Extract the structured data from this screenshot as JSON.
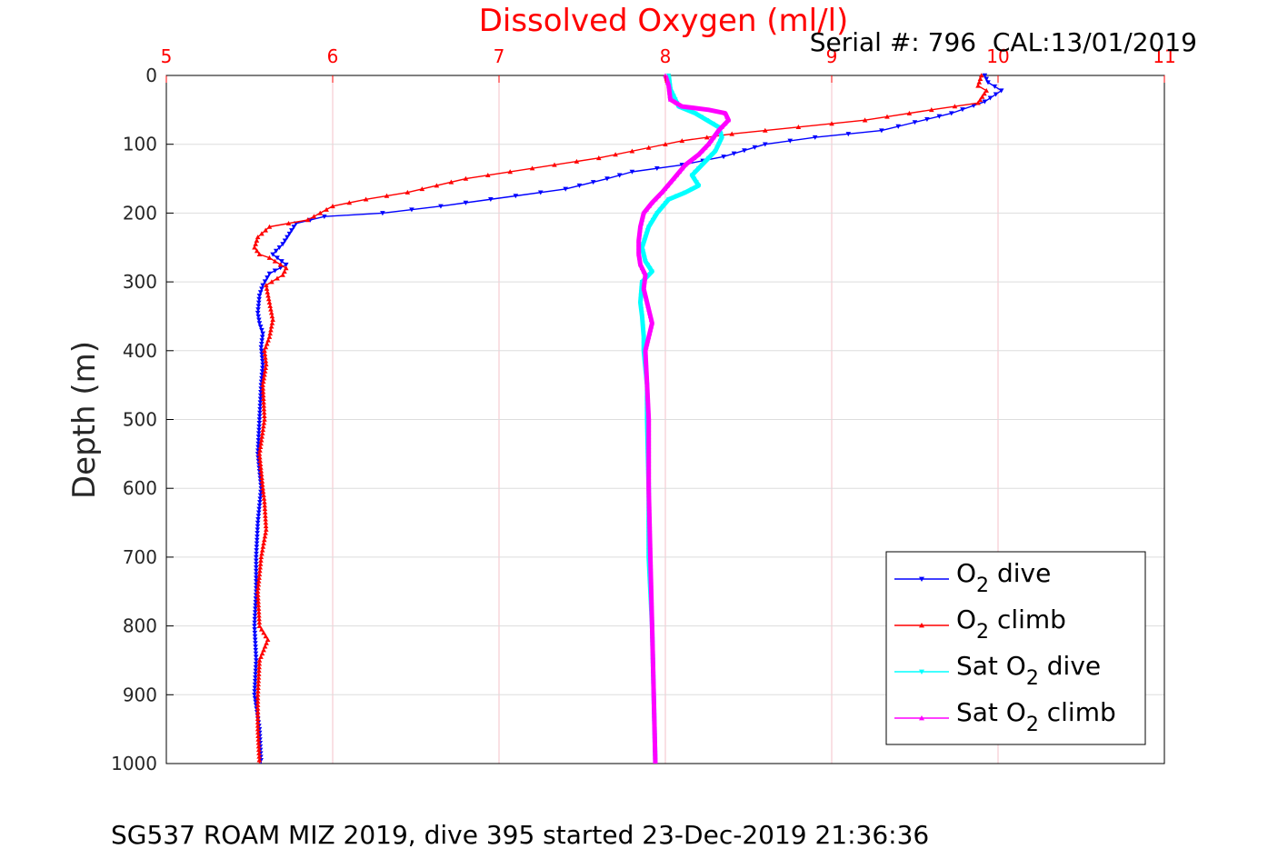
{
  "chart_data": {
    "type": "line",
    "title": "Dissolved Oxygen (ml/l)",
    "subtitle": "Serial #: 796  CAL:13/01/2019",
    "caption": "SG537 ROAM MIZ 2019, dive 395 started 23-Dec-2019 21:36:36",
    "xlabel": "Dissolved Oxygen (ml/l)",
    "ylabel": "Depth (m)",
    "xlim": [
      5,
      11
    ],
    "ylim": [
      0,
      1000
    ],
    "y_reversed": true,
    "x_axis_position": "top",
    "x_ticks": [
      5,
      6,
      7,
      8,
      9,
      10,
      11
    ],
    "y_ticks": [
      0,
      100,
      200,
      300,
      400,
      500,
      600,
      700,
      800,
      900,
      1000
    ],
    "grid": true,
    "legend_position": "bottom-right",
    "colors": {
      "title": "#ff0000",
      "x_ticks": "#ff0000",
      "grid": "#f4c0c8"
    },
    "series": [
      {
        "name": "O2 dive",
        "legend": {
          "main": "O",
          "sub": "2",
          "rest": " dive"
        },
        "color": "#0000ff",
        "marker": "triangle-down",
        "points": [
          [
            9.92,
            0
          ],
          [
            9.94,
            10
          ],
          [
            10.02,
            22
          ],
          [
            9.92,
            38
          ],
          [
            9.72,
            55
          ],
          [
            9.5,
            68
          ],
          [
            9.3,
            80
          ],
          [
            8.9,
            90
          ],
          [
            8.6,
            100
          ],
          [
            8.35,
            118
          ],
          [
            8.1,
            130
          ],
          [
            7.8,
            140
          ],
          [
            7.65,
            150
          ],
          [
            7.4,
            165
          ],
          [
            7.1,
            175
          ],
          [
            6.65,
            190
          ],
          [
            6.3,
            200
          ],
          [
            5.95,
            205
          ],
          [
            5.78,
            215
          ],
          [
            5.74,
            230
          ],
          [
            5.7,
            245
          ],
          [
            5.64,
            260
          ],
          [
            5.72,
            275
          ],
          [
            5.62,
            288
          ],
          [
            5.58,
            305
          ],
          [
            5.56,
            320
          ],
          [
            5.55,
            345
          ],
          [
            5.56,
            360
          ],
          [
            5.58,
            375
          ],
          [
            5.57,
            395
          ],
          [
            5.58,
            420
          ],
          [
            5.57,
            450
          ],
          [
            5.56,
            500
          ],
          [
            5.55,
            550
          ],
          [
            5.57,
            600
          ],
          [
            5.55,
            650
          ],
          [
            5.54,
            700
          ],
          [
            5.54,
            750
          ],
          [
            5.53,
            800
          ],
          [
            5.54,
            850
          ],
          [
            5.53,
            900
          ],
          [
            5.56,
            950
          ],
          [
            5.57,
            1000
          ]
        ]
      },
      {
        "name": "O2 climb",
        "legend": {
          "main": "O",
          "sub": "2",
          "rest": " climb"
        },
        "color": "#ff0000",
        "marker": "triangle-up",
        "points": [
          [
            9.9,
            0
          ],
          [
            9.88,
            15
          ],
          [
            9.93,
            22
          ],
          [
            9.88,
            40
          ],
          [
            9.6,
            50
          ],
          [
            9.2,
            65
          ],
          [
            8.8,
            75
          ],
          [
            8.4,
            85
          ],
          [
            8.1,
            95
          ],
          [
            7.9,
            105
          ],
          [
            7.6,
            120
          ],
          [
            7.2,
            135
          ],
          [
            6.8,
            150
          ],
          [
            6.45,
            170
          ],
          [
            6.2,
            180
          ],
          [
            6.0,
            190
          ],
          [
            5.85,
            210
          ],
          [
            5.62,
            220
          ],
          [
            5.55,
            235
          ],
          [
            5.53,
            250
          ],
          [
            5.56,
            260
          ],
          [
            5.62,
            265
          ],
          [
            5.72,
            280
          ],
          [
            5.7,
            290
          ],
          [
            5.6,
            305
          ],
          [
            5.62,
            330
          ],
          [
            5.64,
            355
          ],
          [
            5.62,
            380
          ],
          [
            5.59,
            400
          ],
          [
            5.6,
            420
          ],
          [
            5.58,
            450
          ],
          [
            5.59,
            500
          ],
          [
            5.56,
            550
          ],
          [
            5.58,
            600
          ],
          [
            5.59,
            620
          ],
          [
            5.6,
            660
          ],
          [
            5.57,
            700
          ],
          [
            5.55,
            750
          ],
          [
            5.56,
            800
          ],
          [
            5.61,
            820
          ],
          [
            5.56,
            850
          ],
          [
            5.55,
            900
          ],
          [
            5.55,
            950
          ],
          [
            5.56,
            1000
          ]
        ]
      },
      {
        "name": "Sat O2 dive",
        "legend": {
          "main": "Sat O",
          "sub": "2",
          "rest": " dive"
        },
        "color": "#00ffff",
        "marker": "triangle-down",
        "points": [
          [
            8.02,
            0
          ],
          [
            8.03,
            20
          ],
          [
            8.08,
            45
          ],
          [
            8.18,
            55
          ],
          [
            8.32,
            75
          ],
          [
            8.34,
            90
          ],
          [
            8.3,
            110
          ],
          [
            8.22,
            130
          ],
          [
            8.16,
            145
          ],
          [
            8.2,
            160
          ],
          [
            8.12,
            170
          ],
          [
            8.02,
            180
          ],
          [
            7.95,
            200
          ],
          [
            7.9,
            220
          ],
          [
            7.86,
            250
          ],
          [
            7.88,
            270
          ],
          [
            7.92,
            285
          ],
          [
            7.86,
            300
          ],
          [
            7.85,
            330
          ],
          [
            7.86,
            350
          ],
          [
            7.87,
            380
          ],
          [
            7.87,
            400
          ],
          [
            7.89,
            450
          ],
          [
            7.89,
            500
          ],
          [
            7.9,
            600
          ],
          [
            7.9,
            700
          ],
          [
            7.92,
            800
          ],
          [
            7.93,
            900
          ],
          [
            7.94,
            1000
          ]
        ]
      },
      {
        "name": "Sat O2 climb",
        "legend": {
          "main": "Sat O",
          "sub": "2",
          "rest": " climb"
        },
        "color": "#ff00ff",
        "marker": "triangle-up",
        "points": [
          [
            8.0,
            0
          ],
          [
            8.02,
            15
          ],
          [
            8.03,
            35
          ],
          [
            8.1,
            45
          ],
          [
            8.26,
            50
          ],
          [
            8.36,
            55
          ],
          [
            8.38,
            65
          ],
          [
            8.32,
            80
          ],
          [
            8.26,
            100
          ],
          [
            8.2,
            115
          ],
          [
            8.12,
            130
          ],
          [
            8.05,
            150
          ],
          [
            7.98,
            170
          ],
          [
            7.92,
            185
          ],
          [
            7.87,
            200
          ],
          [
            7.85,
            220
          ],
          [
            7.84,
            240
          ],
          [
            7.84,
            260
          ],
          [
            7.85,
            275
          ],
          [
            7.88,
            290
          ],
          [
            7.87,
            310
          ],
          [
            7.9,
            340
          ],
          [
            7.92,
            360
          ],
          [
            7.9,
            380
          ],
          [
            7.88,
            400
          ],
          [
            7.89,
            450
          ],
          [
            7.9,
            500
          ],
          [
            7.9,
            600
          ],
          [
            7.91,
            700
          ],
          [
            7.92,
            800
          ],
          [
            7.93,
            900
          ],
          [
            7.94,
            1000
          ]
        ]
      }
    ]
  }
}
